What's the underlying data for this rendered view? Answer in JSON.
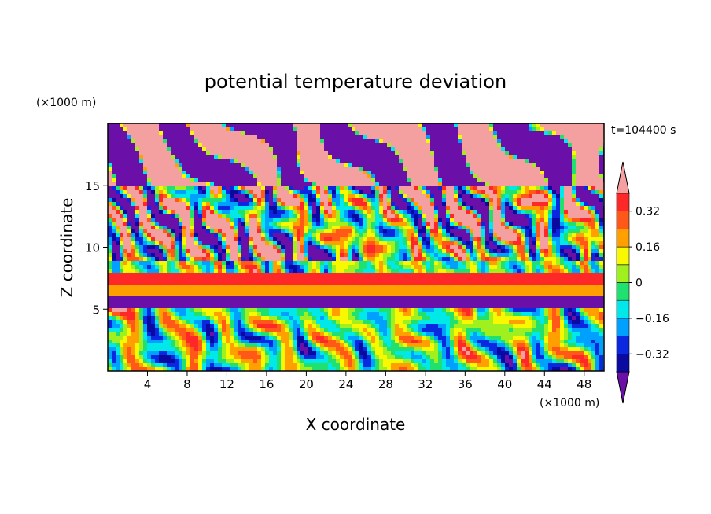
{
  "chart_data": {
    "type": "heatmap",
    "title": "potential temperature deviation",
    "time_label": "t=104400 s",
    "xlabel": "X coordinate",
    "ylabel": "Z coordinate",
    "x_unit_label": "(×1000 m)",
    "y_unit_label": "(×1000 m)",
    "xlim": [
      0,
      50
    ],
    "ylim": [
      0,
      20
    ],
    "x_ticks": [
      4,
      8,
      12,
      16,
      20,
      24,
      28,
      32,
      36,
      40,
      44,
      48
    ],
    "y_ticks": [
      5,
      10,
      15
    ],
    "colorbar": {
      "labels": [
        "0.32",
        "0.16",
        "0",
        "−0.16",
        "−0.32"
      ],
      "label_values": [
        0.32,
        0.16,
        0,
        -0.16,
        -0.32
      ],
      "levels": [
        -0.4,
        -0.32,
        -0.24,
        -0.16,
        -0.08,
        0,
        0.08,
        0.16,
        0.24,
        0.32,
        0.4
      ],
      "colors": [
        "#6a0fa8",
        "#0a0aa0",
        "#0a28e0",
        "#00a0ff",
        "#00e8e8",
        "#20e070",
        "#a0f020",
        "#f8f800",
        "#ffa000",
        "#ff5818",
        "#ff2828",
        "#f4a0a0"
      ],
      "extend": "both"
    },
    "layers": [
      {
        "z": [
          15.0,
          20.0
        ],
        "description": "mixed pink/purple blobs with multicolor filaments"
      },
      {
        "z": [
          9.0,
          15.0
        ],
        "description": "turbulent multicolor layer"
      },
      {
        "z": [
          7.0,
          8.0
        ],
        "value": 0.4
      },
      {
        "z": [
          6.0,
          7.0
        ],
        "value": 0.2
      },
      {
        "z": [
          5.0,
          6.0
        ],
        "value": -0.4
      },
      {
        "z": [
          0.0,
          5.0
        ],
        "description": "wavy multicolor convective eddies"
      }
    ]
  }
}
